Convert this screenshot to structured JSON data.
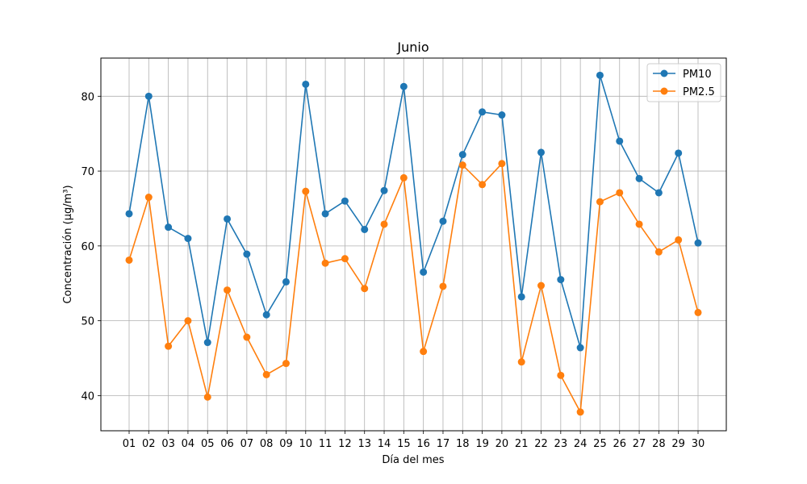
{
  "chart_data": {
    "type": "line",
    "title": "Junio",
    "xlabel": "Día del mes",
    "ylabel": "Concentración (µg/m³)",
    "categories": [
      "01",
      "02",
      "03",
      "04",
      "05",
      "06",
      "07",
      "08",
      "09",
      "10",
      "11",
      "12",
      "13",
      "14",
      "15",
      "16",
      "17",
      "18",
      "19",
      "20",
      "21",
      "22",
      "23",
      "24",
      "25",
      "26",
      "27",
      "28",
      "29",
      "30"
    ],
    "yticks": [
      40,
      50,
      60,
      70,
      80
    ],
    "ylim": [
      35.3,
      85.1
    ],
    "grid": true,
    "legend_position": "top-right",
    "series": [
      {
        "name": "PM10",
        "color": "#1f77b4",
        "values": [
          64.3,
          80.0,
          62.5,
          61.0,
          47.1,
          63.6,
          58.9,
          50.8,
          55.2,
          81.6,
          64.3,
          66.0,
          62.2,
          67.4,
          81.3,
          56.5,
          63.3,
          72.2,
          77.9,
          77.5,
          53.2,
          72.5,
          55.5,
          46.4,
          82.8,
          74.0,
          69.0,
          67.1,
          72.4,
          60.4
        ]
      },
      {
        "name": "PM2.5",
        "color": "#ff7f0e",
        "values": [
          58.1,
          66.5,
          46.6,
          50.0,
          39.8,
          54.1,
          47.8,
          42.8,
          44.3,
          67.3,
          57.7,
          58.3,
          54.3,
          62.9,
          69.1,
          45.9,
          54.6,
          70.8,
          68.2,
          71.0,
          44.5,
          54.7,
          42.7,
          37.8,
          65.9,
          67.1,
          62.9,
          59.2,
          60.8,
          51.1
        ]
      }
    ]
  }
}
